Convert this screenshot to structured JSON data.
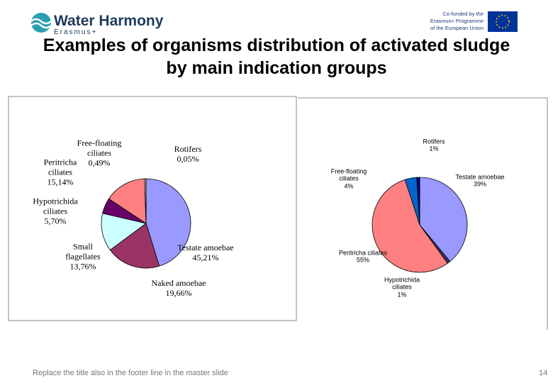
{
  "header": {
    "logo": "Water Harmony",
    "logo_sub": "Erasmus+",
    "eu_text": [
      "Co-funded by the",
      "Erasmus+ Programme",
      "of the European Union"
    ]
  },
  "title": "Examples of organisms distribution of activated sludge by main indication groups",
  "chart_data": [
    {
      "type": "pie",
      "categories": [
        "Testate amoebae",
        "Naked amoebae",
        "Small flagellates",
        "Hypotrichida ciliates",
        "Peritricha ciliates",
        "Free-floating ciliates",
        "Rotifers"
      ],
      "values": [
        45.21,
        19.66,
        13.76,
        5.7,
        15.14,
        0.49,
        0.05
      ],
      "value_labels": [
        "45,21%",
        "19,66%",
        "13,76%",
        "5,70%",
        "15,14%",
        "0,49%",
        "0,05%"
      ],
      "colors": [
        "#9999ff",
        "#993366",
        "#ccffff",
        "#660066",
        "#ff8080",
        "#ffffcc",
        "#0066cc"
      ]
    },
    {
      "type": "pie",
      "categories": [
        "Testate amoebae",
        "Hypotrichida ciliates",
        "Peritricha ciliates",
        "Free-floating ciliates",
        "Rotifers"
      ],
      "values": [
        39,
        1,
        55,
        4,
        1
      ],
      "value_labels": [
        "39%",
        "1%",
        "55%",
        "4%",
        "1%"
      ],
      "colors": [
        "#9999ff",
        "#333366",
        "#ff8080",
        "#0066cc",
        "#000080"
      ]
    }
  ],
  "footer": "Replace the title also in the footer line in the master slide",
  "page_number": "14"
}
